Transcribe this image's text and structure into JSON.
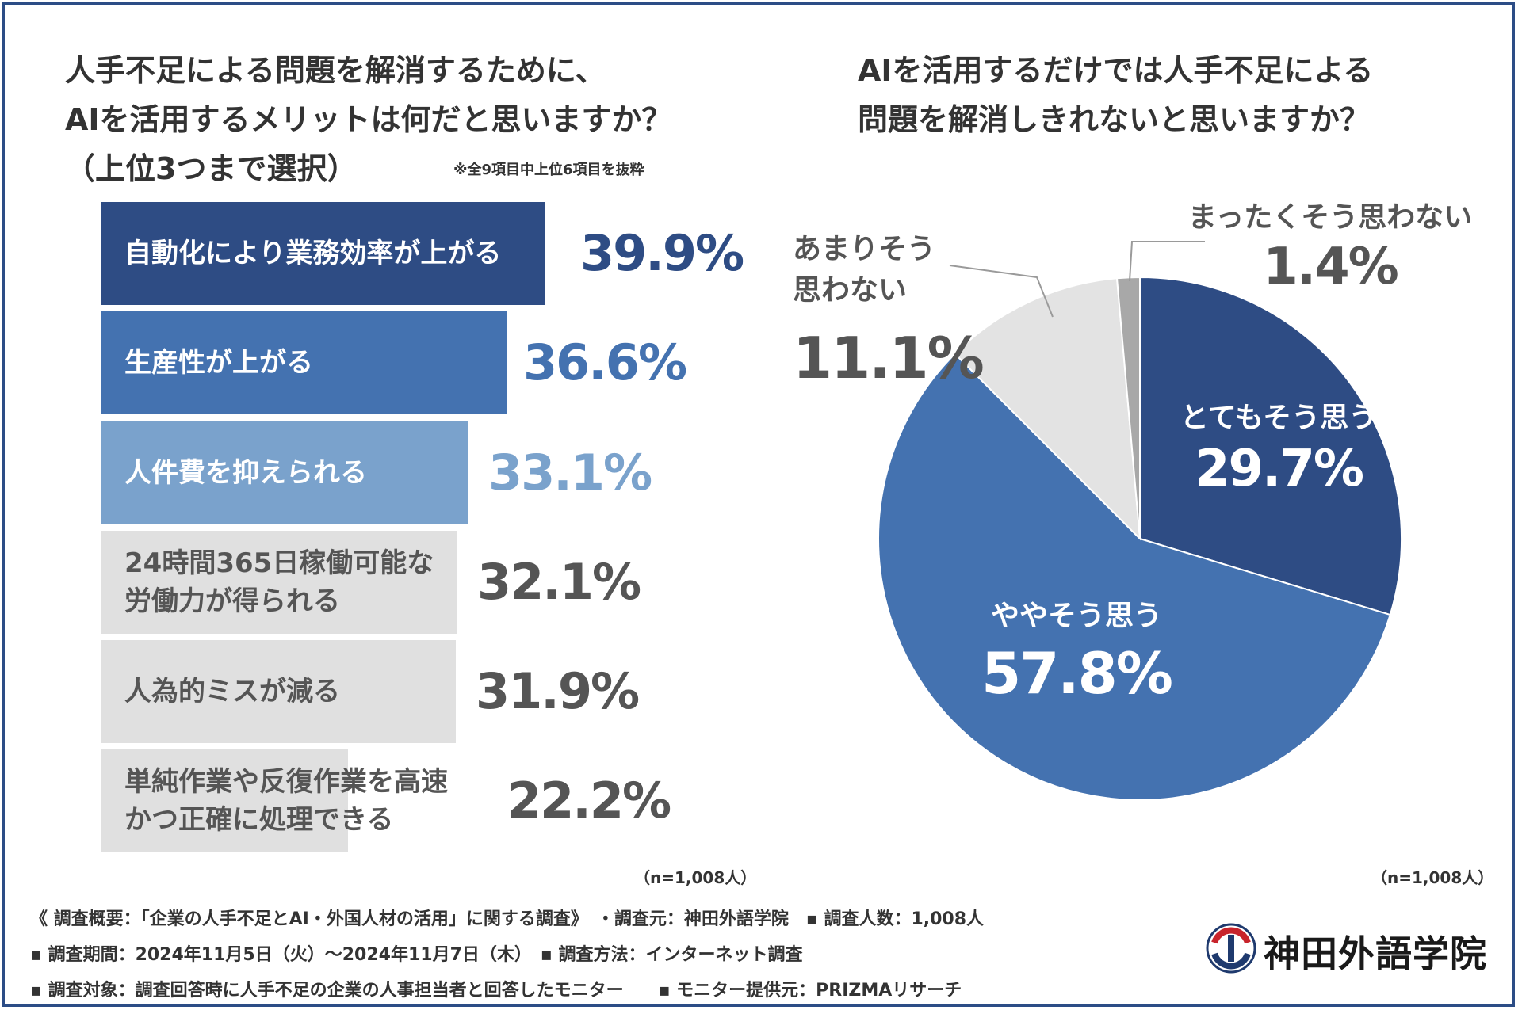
{
  "left_title": {
    "lines": [
      "人手不足による問題を解消するために、",
      "AIを活用するメリットは何だと思いますか？",
      "（上位3つまで選択）"
    ],
    "note": "※全9項目中上位6項目を抜粋"
  },
  "right_title": {
    "lines": [
      "AIを活用するだけでは人手不足による",
      "問題を解消しきれないと思いますか？"
    ]
  },
  "chart_data": [
    {
      "type": "bar",
      "orientation": "horizontal",
      "categories": [
        "自動化により業務効率が上がる",
        "生産性が上がる",
        "人件費を抑えられる",
        "24時間365日稼働可能な労働力が得られる",
        "人為的ミスが減る",
        "単純作業や反復作業を高速かつ正確に処理できる"
      ],
      "label_lines": [
        [
          "自動化により業務効率が上がる"
        ],
        [
          "生産性が上がる"
        ],
        [
          "人件費を抑えられる"
        ],
        [
          "24時間365日稼働可能な",
          "労働力が得られる"
        ],
        [
          "人為的ミスが減る"
        ],
        [
          "単純作業や反復作業を高速",
          "かつ正確に処理できる"
        ]
      ],
      "values": [
        39.9,
        36.6,
        33.1,
        32.1,
        31.9,
        22.2
      ],
      "value_labels": [
        "39.9%",
        "36.6%",
        "33.1%",
        "32.1%",
        "31.9%",
        "22.2%"
      ],
      "colors": [
        "#2e4c84",
        "#4472b0",
        "#7aa2cc",
        "#e0e0e0",
        "#e0e0e0",
        "#e0e0e0"
      ],
      "label_colors": [
        "#ffffff",
        "#ffffff",
        "#ffffff",
        "#555555",
        "#555555",
        "#555555"
      ],
      "value_colors": [
        "#2e4c84",
        "#4472b0",
        "#7aa2cc",
        "#555555",
        "#555555",
        "#555555"
      ],
      "n_label": "（n=1,008人）"
    },
    {
      "type": "pie",
      "labels": [
        "とてもそう思う",
        "ややそう思う",
        "あまりそう思わない",
        "まったくそう思わない"
      ],
      "label_lines": [
        [
          "とてもそう思う"
        ],
        [
          "ややそう思う"
        ],
        [
          "あまりそう",
          "思わない"
        ],
        [
          "まったくそう思わない"
        ]
      ],
      "values": [
        29.7,
        57.8,
        11.1,
        1.4
      ],
      "value_labels": [
        "29.7%",
        "57.8%",
        "11.1%",
        "1.4%"
      ],
      "colors": [
        "#2e4c84",
        "#4472b0",
        "#e3e3e3",
        "#a8a8a8"
      ],
      "label_colors": [
        "#ffffff",
        "#ffffff",
        "#555555",
        "#555555"
      ],
      "start_angle_deg": 0,
      "direction": "clockwise",
      "n_label": "（n=1,008人）"
    }
  ],
  "footer": {
    "line1": "《 調査概要：「企業の人手不足とAI・外国人材の活用」に関する調査》　・調査元：神田外語学院　▪ 調査人数：1,008人",
    "line2": "▪ 調査期間：2024年11月5日（火）〜2024年11月7日（木）　▪ 調査方法：インターネット調査",
    "line3": "▪ 調査対象：調査回答時に人手不足の企業の人事担当者と回答したモニター　　▪ モニター提供元：PRIZMAリサーチ"
  },
  "logo": {
    "name": "神田外語学院",
    "colors": {
      "red": "#c8242c",
      "navy": "#1f3a6e"
    }
  }
}
